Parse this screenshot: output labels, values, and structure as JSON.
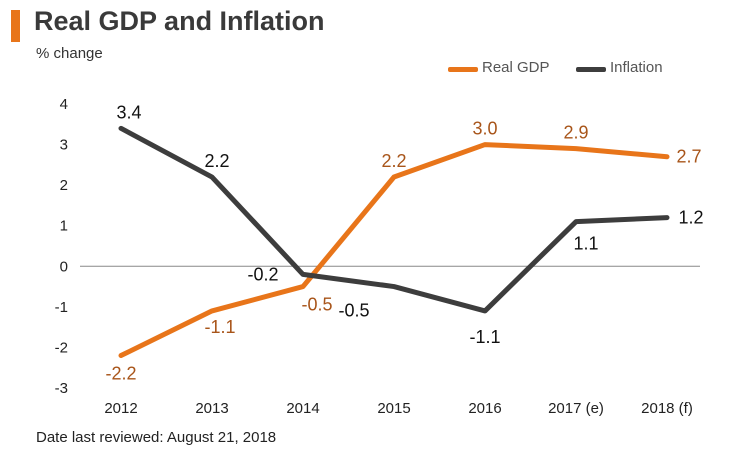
{
  "header": {
    "title": "Real GDP and Inflation",
    "subtitle": "% change"
  },
  "footer": {
    "note": "Date last reviewed: August 21, 2018"
  },
  "colors": {
    "accent": "#E8751A",
    "real_gdp": "#E8751A",
    "inflation": "#3D3D3D",
    "gdp_label": "#A8551A",
    "inflation_label": "#111111"
  },
  "chart_data": {
    "type": "line",
    "title": "Real GDP and Inflation",
    "ylabel": "% change",
    "xlabel": "",
    "categories": [
      "2012",
      "2013",
      "2014",
      "2015",
      "2016",
      "2017 (e)",
      "2018 (f)"
    ],
    "ylim": [
      -3,
      4
    ],
    "yticks": [
      "-3",
      "-2",
      "-1",
      "0",
      "1",
      "2",
      "3",
      "4"
    ],
    "grid": false,
    "legend_position": "top-right",
    "series": [
      {
        "name": "Real GDP",
        "values": [
          -2.2,
          -1.1,
          -0.5,
          2.2,
          3.0,
          2.9,
          2.7
        ],
        "labels": [
          "-2.2",
          "-1.1",
          "-0.5",
          "2.2",
          "3.0",
          "2.9",
          "2.7"
        ]
      },
      {
        "name": "Inflation",
        "values": [
          3.4,
          2.2,
          -0.2,
          -0.5,
          -1.1,
          1.1,
          1.2
        ],
        "labels": [
          "3.4",
          "2.2",
          "-0.2",
          "-0.5",
          "-1.1",
          "1.1",
          "1.2"
        ]
      }
    ]
  }
}
